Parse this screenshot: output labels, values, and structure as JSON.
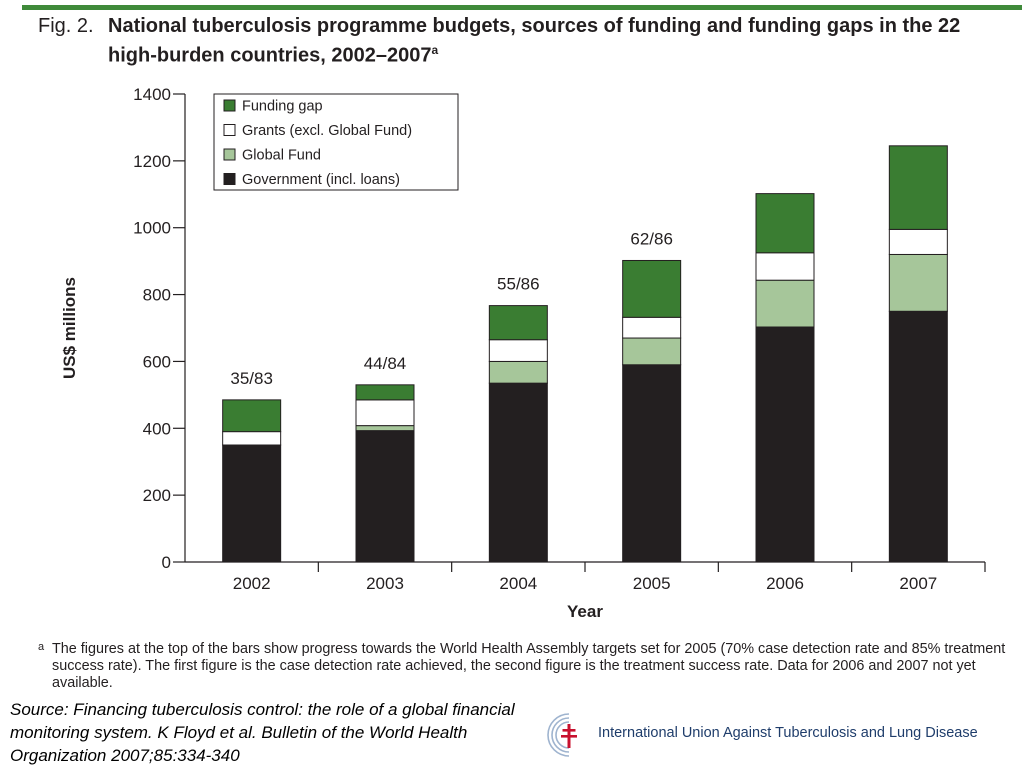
{
  "figure": {
    "label": "Fig. 2.",
    "title": "National tuberculosis programme budgets, sources of funding and funding gaps in the 22 high-burden countries, 2002–2007",
    "title_mark": "a"
  },
  "chart_data": {
    "type": "bar",
    "stacked": true,
    "categories": [
      "2002",
      "2003",
      "2004",
      "2005",
      "2006",
      "2007"
    ],
    "series": [
      {
        "name": "Government (incl. loans)",
        "color": "#231f20",
        "values": [
          350,
          393,
          535,
          590,
          703,
          750
        ]
      },
      {
        "name": "Global Fund",
        "color": "#a6c69a",
        "values": [
          0,
          15,
          65,
          80,
          140,
          170
        ]
      },
      {
        "name": "Grants (excl. Global Fund)",
        "color": "#ffffff",
        "values": [
          40,
          77,
          65,
          62,
          82,
          75
        ]
      },
      {
        "name": "Funding gap",
        "color": "#3a7d32",
        "values": [
          95,
          45,
          102,
          170,
          177,
          250
        ]
      }
    ],
    "bar_labels": [
      "35/83",
      "44/84",
      "55/86",
      "62/86",
      "",
      ""
    ],
    "xlabel": "Year",
    "ylabel": "US$ millions",
    "ylim": [
      0,
      1400
    ],
    "yticks": [
      0,
      200,
      400,
      600,
      800,
      1000,
      1200,
      1400
    ],
    "legend_order": [
      "Funding gap",
      "Grants (excl. Global Fund)",
      "Global Fund",
      "Government (incl. loans)"
    ],
    "legend_position": "top-left",
    "grid": false
  },
  "footnote": {
    "mark": "a",
    "text": "The figures at the top of the bars show progress towards the World Health Assembly targets set for 2005 (70% case detection rate and 85% treatment success rate). The first figure is the case detection rate achieved, the second figure is the treatment success rate. Data for 2006 and 2007 not yet available."
  },
  "source": "Source: Financing tuberculosis control: the role of a global financial monitoring system. K Floyd et al. Bulletin of the World Health Organization 2007;85:334-340",
  "organization": {
    "name": "International Union Against Tuberculosis and Lung Disease",
    "logo_icon": "double-barred-cross-logo-icon",
    "brand_color": "#1f3d6b"
  }
}
